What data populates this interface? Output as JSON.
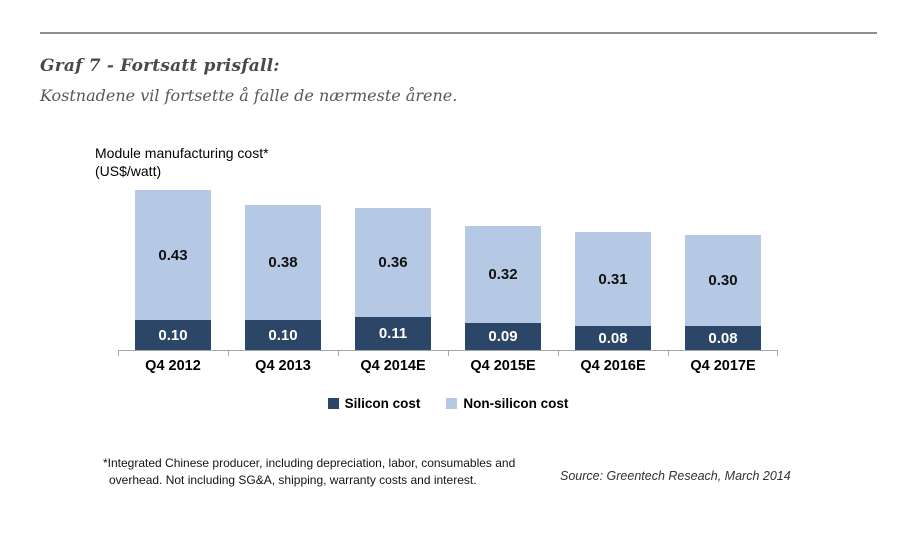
{
  "header": {
    "title": "Graf 7 - Fortsatt prisfall:",
    "subtitle": "Kostnadene vil fortsette å falle de nærmeste årene."
  },
  "chart_data": {
    "type": "bar",
    "stacked": true,
    "title": "Module manufacturing cost*",
    "units": "(US$/watt)",
    "categories": [
      "Q4 2012",
      "Q4 2013",
      "Q4 2014E",
      "Q4 2015E",
      "Q4 2016E",
      "Q4 2017E"
    ],
    "series": [
      {
        "name": "Silicon cost",
        "color": "#2c4668",
        "label_color": "#ffffff",
        "values": [
          0.1,
          0.1,
          0.11,
          0.09,
          0.08,
          0.08
        ]
      },
      {
        "name": "Non-silicon cost",
        "color": "#b5c9e5",
        "label_color": "#111111",
        "values": [
          0.43,
          0.38,
          0.36,
          0.32,
          0.31,
          0.3
        ]
      }
    ],
    "totals": [
      0.53,
      0.48,
      0.47,
      0.41,
      0.39,
      0.38
    ],
    "ylim": [
      0,
      0.55
    ],
    "grid": false,
    "legend_position": "bottom",
    "value_label_decimals": 2,
    "axis_color": "#a6a6a6"
  },
  "footnote": {
    "line1": "*Integrated Chinese producer, including depreciation, labor, consumables and",
    "line2": "overhead. Not including SG&A, shipping, warranty costs and interest."
  },
  "source": "Source: Greentech Reseach, March 2014"
}
